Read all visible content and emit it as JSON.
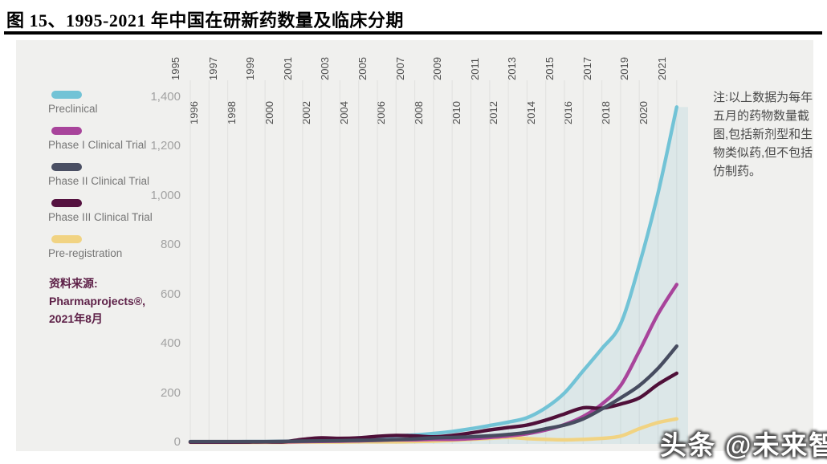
{
  "page": {
    "title": "图 15、1995-2021 年中国在研新药数量及临床分期"
  },
  "panel": {
    "bg": "#f0f0ee",
    "gridline_color": "#e3e3e1"
  },
  "legend": {
    "items": [
      {
        "label": "Preclinical",
        "color": "#72c3d6"
      },
      {
        "label": "Phase I Clinical Trial",
        "color": "#a8449b"
      },
      {
        "label": "Phase II Clinical Trial",
        "color": "#4a4f63"
      },
      {
        "label": "Phase III Clinical Trial",
        "color": "#551240"
      },
      {
        "label": "Pre-registration",
        "color": "#f1d382"
      }
    ]
  },
  "source": {
    "lines": [
      "资料来源:",
      "Pharmaprojects®,",
      "2021年8月"
    ],
    "color": "#5e2148"
  },
  "note": {
    "text": "注:以上数据为每年五月的药物数量截图,包括新剂型和生物类似药,但不包括仿制药。"
  },
  "watermark": {
    "text": "头条 @未来智库"
  },
  "chart_data": {
    "type": "line",
    "title": "1995-2021 年中国在研新药数量及临床分期",
    "x": [
      1995,
      1996,
      1997,
      1998,
      1999,
      2000,
      2001,
      2002,
      2003,
      2004,
      2005,
      2006,
      2007,
      2008,
      2009,
      2010,
      2011,
      2012,
      2013,
      2014,
      2015,
      2016,
      2017,
      2018,
      2019,
      2020,
      2021
    ],
    "series": [
      {
        "name": "Preclinical",
        "color": "#72c3d6",
        "area_fill": "rgba(120,188,205,0.16)",
        "values": [
          2,
          2,
          2,
          3,
          3,
          4,
          6,
          8,
          12,
          18,
          22,
          26,
          30,
          36,
          44,
          55,
          68,
          82,
          100,
          140,
          200,
          290,
          380,
          480,
          720,
          1010,
          1360
        ]
      },
      {
        "name": "Phase I Clinical Trial",
        "color": "#a8449b",
        "values": [
          1,
          1,
          1,
          2,
          2,
          2,
          3,
          4,
          5,
          6,
          8,
          10,
          10,
          12,
          12,
          15,
          20,
          26,
          35,
          50,
          72,
          105,
          155,
          230,
          370,
          520,
          640
        ]
      },
      {
        "name": "Phase II Clinical Trial",
        "color": "#474c60",
        "values": [
          3,
          3,
          3,
          3,
          3,
          4,
          5,
          6,
          7,
          8,
          9,
          11,
          14,
          18,
          20,
          22,
          26,
          32,
          40,
          55,
          70,
          95,
          135,
          180,
          230,
          300,
          390
        ]
      },
      {
        "name": "Phase III Clinical Trial",
        "color": "#4f1039",
        "values": [
          1,
          1,
          1,
          1,
          2,
          2,
          12,
          18,
          16,
          18,
          24,
          28,
          26,
          22,
          28,
          38,
          50,
          60,
          70,
          90,
          115,
          140,
          138,
          155,
          180,
          235,
          280
        ]
      },
      {
        "name": "Pre-registration",
        "color": "#f1d382",
        "values": [
          0,
          0,
          0,
          0,
          0,
          0,
          1,
          1,
          1,
          2,
          2,
          2,
          3,
          5,
          8,
          12,
          16,
          20,
          15,
          12,
          10,
          12,
          16,
          25,
          55,
          80,
          95
        ]
      }
    ],
    "ylim": [
      0,
      1400
    ],
    "yticks": [
      "0",
      "200",
      "400",
      "600",
      "800",
      "1,000",
      "1,200",
      "1,400"
    ],
    "grid": "vertical-per-year",
    "legend_position": "left",
    "x_label_style": "rotated-90-staggered"
  }
}
